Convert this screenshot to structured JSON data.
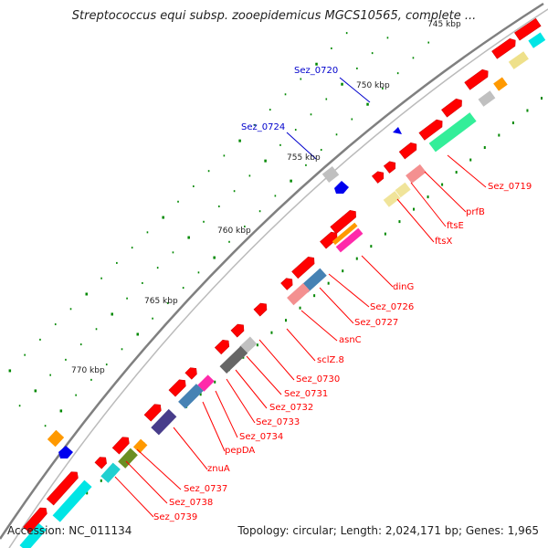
{
  "title": "Streptococcus equi subsp. zooepidemicus MGCS10565, complete ...",
  "footer": {
    "accession_label": "Accession:",
    "accession": "NC_011134",
    "topology_text": "Topology: circular; Length: 2,024,171 bp; Genes: 1,965"
  },
  "colors": {
    "backbone": "#808080",
    "forward_gene": "#ff0000",
    "label_line": "#ff0000",
    "label_text": "#ff0000",
    "blue_label": "#0000cc",
    "tick": "#008800"
  },
  "scale": [
    {
      "label": "745 kbp",
      "kbp": 745
    },
    {
      "label": "750 kbp",
      "kbp": 750
    },
    {
      "label": "755 kbp",
      "kbp": 755
    },
    {
      "label": "760 kbp",
      "kbp": 760
    },
    {
      "label": "765 kbp",
      "kbp": 765
    },
    {
      "label": "770 kbp",
      "kbp": 770
    }
  ],
  "gene_labels_outer": [
    {
      "label": "Sez_0720",
      "kbp": 748.0
    },
    {
      "label": "Sez_0724",
      "kbp": 753.0
    }
  ],
  "gene_labels_inner": [
    {
      "label": "Sez_0719",
      "kbp": 746.5
    },
    {
      "label": "prfB",
      "kbp": 748.5
    },
    {
      "label": "ftsE",
      "kbp": 749.6
    },
    {
      "label": "ftsX",
      "kbp": 750.6
    },
    {
      "label": "dinG",
      "kbp": 756.0
    },
    {
      "label": "Sez_0726",
      "kbp": 757.0
    },
    {
      "label": "Sez_0727",
      "kbp": 758.0
    },
    {
      "label": "asnC",
      "kbp": 758.8
    },
    {
      "label": "sclZ.8",
      "kbp": 760.4
    },
    {
      "label": "Sez_0730",
      "kbp": 761.4
    },
    {
      "label": "Sez_0731",
      "kbp": 762.2
    },
    {
      "label": "Sez_0732",
      "kbp": 763.0
    },
    {
      "label": "Sez_0733",
      "kbp": 763.7
    },
    {
      "label": "Sez_0734",
      "kbp": 764.4
    },
    {
      "label": "pepDA",
      "kbp": 765.4
    },
    {
      "label": "znuA",
      "kbp": 766.3
    },
    {
      "label": "Sez_0737",
      "kbp": 767.6
    },
    {
      "label": "Sez_0738",
      "kbp": 768.4
    },
    {
      "label": "Sez_0739",
      "kbp": 769.3
    }
  ]
}
